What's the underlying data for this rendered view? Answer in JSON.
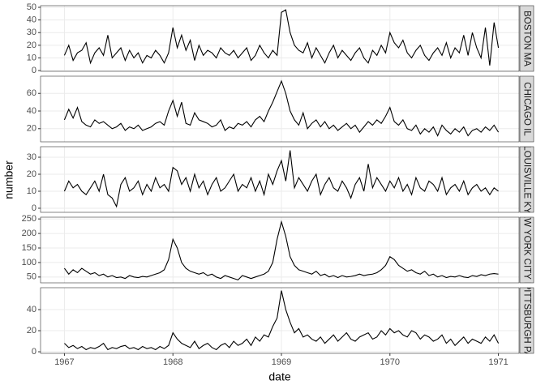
{
  "chart_data": {
    "type": "line",
    "x_label": "date",
    "y_label": "number",
    "color": "#000000",
    "grid": true,
    "xlim": [
      1966.78,
      1971.19
    ],
    "xticks": [
      1967,
      1968,
      1969,
      1970,
      1971
    ],
    "x": [
      1967,
      1967.04,
      1967.08,
      1967.12,
      1967.16,
      1967.2,
      1967.24,
      1967.28,
      1967.32,
      1967.36,
      1967.4,
      1967.44,
      1967.48,
      1967.52,
      1967.56,
      1967.6,
      1967.64,
      1967.68,
      1967.72,
      1967.76,
      1967.8,
      1967.84,
      1967.88,
      1967.92,
      1967.96,
      1968,
      1968.04,
      1968.08,
      1968.12,
      1968.16,
      1968.2,
      1968.24,
      1968.28,
      1968.32,
      1968.36,
      1968.4,
      1968.44,
      1968.48,
      1968.52,
      1968.56,
      1968.6,
      1968.64,
      1968.68,
      1968.72,
      1968.76,
      1968.8,
      1968.84,
      1968.88,
      1968.92,
      1968.96,
      1969,
      1969.04,
      1969.08,
      1969.12,
      1969.16,
      1969.2,
      1969.24,
      1969.28,
      1969.32,
      1969.36,
      1969.4,
      1969.44,
      1969.48,
      1969.52,
      1969.56,
      1969.6,
      1969.64,
      1969.68,
      1969.72,
      1969.76,
      1969.8,
      1969.84,
      1969.88,
      1969.92,
      1969.96,
      1970,
      1970.04,
      1970.08,
      1970.12,
      1970.16,
      1970.2,
      1970.24,
      1970.28,
      1970.32,
      1970.36,
      1970.4,
      1970.44,
      1970.48,
      1970.52,
      1970.56,
      1970.6,
      1970.64,
      1970.68,
      1970.72,
      1970.76,
      1970.8,
      1970.84,
      1970.88,
      1970.92,
      1970.96,
      1971
    ],
    "panels": [
      {
        "label": "BOSTON MA",
        "ylim": [
          -0.6,
          51.3
        ],
        "yticks": [
          0,
          10,
          20,
          30,
          40,
          50
        ],
        "values": [
          12,
          20,
          8,
          14,
          16,
          22,
          6,
          14,
          18,
          12,
          28,
          10,
          14,
          18,
          8,
          16,
          10,
          14,
          6,
          12,
          10,
          16,
          12,
          6,
          14,
          34,
          18,
          28,
          16,
          24,
          8,
          20,
          12,
          16,
          14,
          10,
          18,
          14,
          12,
          16,
          10,
          14,
          18,
          8,
          12,
          20,
          14,
          10,
          16,
          12,
          46,
          48,
          30,
          20,
          16,
          14,
          22,
          10,
          18,
          12,
          6,
          14,
          20,
          10,
          16,
          12,
          8,
          14,
          18,
          10,
          6,
          16,
          12,
          20,
          14,
          30,
          22,
          18,
          24,
          14,
          10,
          16,
          20,
          12,
          8,
          14,
          18,
          12,
          22,
          10,
          18,
          14,
          28,
          12,
          30,
          18,
          10,
          34,
          4,
          38,
          18
        ]
      },
      {
        "label": "CHICAGO IL",
        "ylim": [
          5.1,
          79.5
        ],
        "yticks": [
          20,
          40,
          60
        ],
        "values": [
          30,
          42,
          32,
          44,
          28,
          24,
          22,
          30,
          26,
          28,
          24,
          20,
          22,
          26,
          18,
          22,
          20,
          24,
          18,
          20,
          22,
          26,
          28,
          24,
          40,
          52,
          34,
          50,
          26,
          24,
          38,
          30,
          28,
          26,
          22,
          24,
          30,
          18,
          22,
          20,
          26,
          24,
          28,
          22,
          30,
          34,
          28,
          40,
          50,
          62,
          74,
          60,
          40,
          30,
          24,
          38,
          20,
          26,
          30,
          22,
          28,
          20,
          24,
          18,
          22,
          26,
          20,
          24,
          16,
          22,
          28,
          24,
          30,
          26,
          34,
          44,
          28,
          24,
          30,
          20,
          18,
          24,
          14,
          20,
          16,
          22,
          12,
          24,
          18,
          14,
          20,
          16,
          22,
          12,
          18,
          20,
          16,
          22,
          18,
          24,
          16
        ]
      },
      {
        "label": "LOUISVILLE KY",
        "ylim": [
          -2.4,
          36.2
        ],
        "yticks": [
          0,
          10,
          20,
          30
        ],
        "values": [
          10,
          16,
          12,
          14,
          10,
          8,
          12,
          16,
          10,
          20,
          8,
          6,
          1,
          14,
          18,
          10,
          12,
          16,
          8,
          14,
          10,
          18,
          12,
          14,
          10,
          24,
          22,
          14,
          18,
          10,
          20,
          12,
          16,
          8,
          14,
          18,
          10,
          12,
          16,
          20,
          10,
          14,
          12,
          18,
          10,
          16,
          8,
          20,
          14,
          22,
          28,
          16,
          34,
          12,
          18,
          14,
          10,
          16,
          20,
          8,
          14,
          18,
          12,
          10,
          16,
          12,
          6,
          14,
          18,
          10,
          26,
          12,
          18,
          14,
          10,
          16,
          12,
          18,
          10,
          14,
          8,
          18,
          12,
          10,
          16,
          14,
          10,
          18,
          8,
          12,
          14,
          10,
          16,
          8,
          12,
          14,
          10,
          12,
          8,
          12,
          10
        ]
      },
      {
        "label": "NEW YORK CITY NY",
        "ylim": [
          30,
          256
        ],
        "yticks": [
          50,
          100,
          150,
          200,
          250
        ],
        "values": [
          80,
          60,
          75,
          65,
          80,
          70,
          60,
          65,
          55,
          60,
          50,
          55,
          48,
          50,
          45,
          55,
          50,
          48,
          52,
          50,
          55,
          60,
          65,
          75,
          110,
          180,
          150,
          100,
          80,
          70,
          65,
          60,
          65,
          55,
          60,
          50,
          45,
          55,
          50,
          45,
          40,
          55,
          50,
          45,
          50,
          55,
          60,
          70,
          100,
          180,
          240,
          190,
          120,
          90,
          75,
          70,
          65,
          60,
          70,
          55,
          60,
          50,
          55,
          48,
          55,
          50,
          52,
          55,
          60,
          55,
          58,
          60,
          65,
          75,
          90,
          120,
          110,
          90,
          80,
          70,
          75,
          65,
          60,
          70,
          55,
          60,
          50,
          55,
          48,
          52,
          50,
          55,
          50,
          48,
          55,
          52,
          58,
          55,
          60,
          62,
          60
        ]
      },
      {
        "label": "PITTSBURGH PA",
        "ylim": [
          -1.5,
          60.8
        ],
        "yticks": [
          0,
          20,
          40
        ],
        "values": [
          8,
          4,
          6,
          3,
          5,
          2,
          4,
          3,
          5,
          8,
          2,
          4,
          3,
          5,
          6,
          3,
          4,
          2,
          5,
          3,
          4,
          2,
          5,
          3,
          6,
          18,
          12,
          8,
          6,
          4,
          10,
          3,
          6,
          8,
          4,
          2,
          6,
          8,
          4,
          10,
          6,
          8,
          12,
          6,
          14,
          10,
          16,
          14,
          24,
          32,
          58,
          40,
          28,
          18,
          22,
          14,
          16,
          12,
          10,
          14,
          8,
          12,
          16,
          10,
          14,
          18,
          12,
          10,
          14,
          16,
          18,
          12,
          14,
          20,
          16,
          22,
          18,
          20,
          16,
          14,
          20,
          18,
          12,
          16,
          14,
          10,
          12,
          16,
          8,
          12,
          6,
          10,
          14,
          8,
          12,
          10,
          8,
          14,
          10,
          16,
          8
        ]
      }
    ]
  }
}
